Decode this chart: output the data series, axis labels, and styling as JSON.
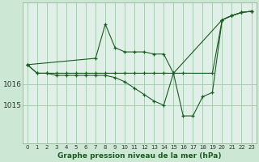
{
  "title": "Graphe pression niveau de la mer (hPa)",
  "bg_color": "#cce8d4",
  "plot_bg_color": "#e0f0e8",
  "line_color": "#1a5c20",
  "grid_color": "#a0c8a8",
  "ylim": [
    1013.2,
    1019.8
  ],
  "ytick_vals": [
    1015,
    1016
  ],
  "ytick_labels": [
    "1015",
    "1016"
  ],
  "xlim": [
    -0.5,
    23.5
  ],
  "xticks": [
    0,
    1,
    2,
    3,
    4,
    5,
    6,
    7,
    8,
    9,
    10,
    11,
    12,
    13,
    14,
    15,
    16,
    17,
    18,
    19,
    20,
    21,
    22,
    23
  ],
  "series": [
    {
      "x": [
        0,
        1,
        2,
        3,
        4,
        5,
        6,
        7,
        8,
        9,
        10,
        11,
        12,
        13,
        14,
        15,
        16,
        19,
        20,
        21,
        22,
        23
      ],
      "y": [
        1016.9,
        1016.5,
        1016.5,
        1016.5,
        1016.5,
        1016.5,
        1016.5,
        1016.5,
        1016.5,
        1016.5,
        1016.5,
        1016.5,
        1016.5,
        1016.5,
        1016.5,
        1016.5,
        1016.5,
        1016.5,
        1019.0,
        1019.2,
        1019.35,
        1019.4
      ]
    },
    {
      "x": [
        0,
        7,
        8,
        9,
        10,
        11,
        12,
        13,
        14,
        15,
        20,
        21,
        22,
        23
      ],
      "y": [
        1016.9,
        1017.2,
        1018.8,
        1017.7,
        1017.5,
        1017.5,
        1017.5,
        1017.4,
        1017.4,
        1016.5,
        1019.0,
        1019.2,
        1019.35,
        1019.4
      ]
    },
    {
      "x": [
        0,
        1,
        2,
        3,
        4,
        5,
        6,
        7,
        8,
        9,
        10,
        11,
        12,
        13,
        14,
        15,
        16,
        17,
        18,
        19,
        20,
        21,
        22,
        23
      ],
      "y": [
        1016.9,
        1016.5,
        1016.5,
        1016.4,
        1016.4,
        1016.4,
        1016.4,
        1016.4,
        1016.4,
        1016.3,
        1016.1,
        1015.8,
        1015.5,
        1015.2,
        1015.0,
        1016.5,
        1014.5,
        1014.5,
        1015.4,
        1015.6,
        1019.0,
        1019.2,
        1019.35,
        1019.4
      ]
    }
  ]
}
